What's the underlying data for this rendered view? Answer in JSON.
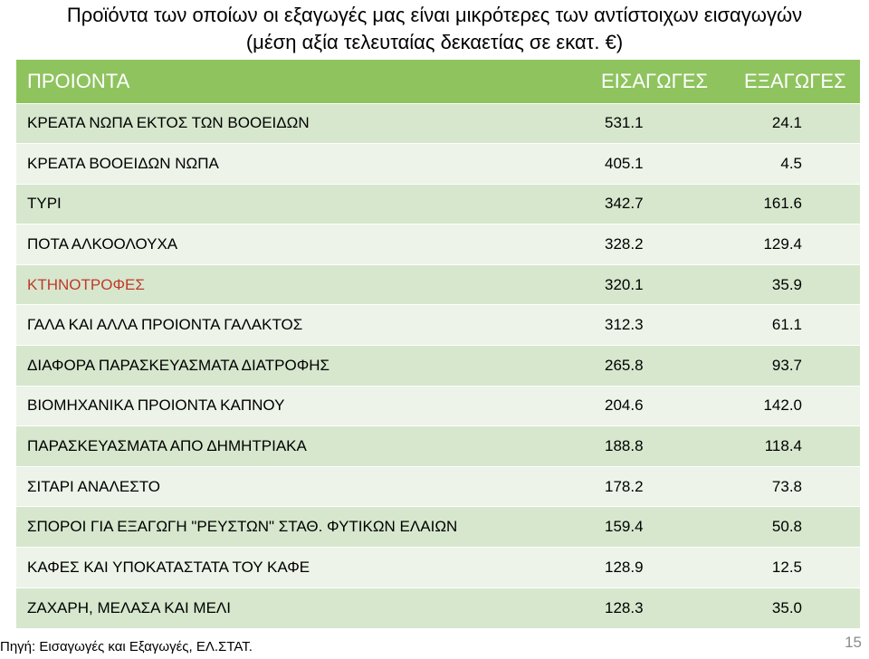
{
  "title": {
    "line1": "Προϊόντα των οποίων οι εξαγωγές μας είναι μικρότερες των αντίστοιχων εισαγωγών",
    "line2": "(μέση αξία τελευταίας δεκαετίας σε εκατ. €)"
  },
  "table": {
    "headers": [
      "ΠΡΟΙΟΝΤΑ",
      "ΕΙΣΑΓΩΓΕΣ",
      "ΕΞΑΓΩΓΕΣ"
    ],
    "rows": [
      {
        "name": "ΚΡΕΑΤΑ ΝΩΠΑ ΕΚΤΟΣ ΤΩΝ ΒΟΟΕΙΔΩΝ",
        "imports": "531.1",
        "exports": "24.1"
      },
      {
        "name": "ΚΡΕΑΤΑ ΒΟΟΕΙΔΩΝ ΝΩΠΑ",
        "imports": "405.1",
        "exports": "4.5"
      },
      {
        "name": "ΤΥΡΙ",
        "imports": "342.7",
        "exports": "161.6"
      },
      {
        "name": "ΠΟΤΑ ΑΛΚΟΟΛΟΥΧΑ",
        "imports": "328.2",
        "exports": "129.4"
      },
      {
        "name": "ΚΤΗΝΟΤΡΟΦΕΣ",
        "imports": "320.1",
        "exports": "35.9"
      },
      {
        "name": "ΓΑΛΑ ΚΑΙ ΑΛΛΑ ΠΡΟΙΟΝΤΑ ΓΑΛΑΚΤΟΣ",
        "imports": "312.3",
        "exports": "61.1"
      },
      {
        "name": "ΔΙΑΦΟΡΑ ΠΑΡΑΣΚΕΥΑΣΜΑΤΑ ΔΙΑΤΡΟΦΗΣ",
        "imports": "265.8",
        "exports": "93.7"
      },
      {
        "name": "ΒΙΟΜΗΧΑΝΙΚΑ ΠΡΟΙΟΝΤΑ ΚΑΠΝΟΥ",
        "imports": "204.6",
        "exports": "142.0"
      },
      {
        "name": "ΠΑΡΑΣΚΕΥΑΣΜΑΤΑ ΑΠΟ ΔΗΜΗΤΡΙΑΚΑ",
        "imports": "188.8",
        "exports": "118.4"
      },
      {
        "name": "ΣΙΤΑΡΙ ΑΝΑΛΕΣΤΟ",
        "imports": "178.2",
        "exports": "73.8"
      },
      {
        "name": "ΣΠΟΡΟΙ ΓΙΑ ΕΞΑΓΩΓΗ \"ΡΕΥΣΤΩΝ\" ΣΤΑΘ. ΦΥΤΙΚΩΝ ΕΛΑΙΩΝ",
        "imports": "159.4",
        "exports": "50.8"
      },
      {
        "name": "ΚΑΦΕΣ ΚΑΙ ΥΠΟΚΑΤΑΣΤΑΤΑ ΤΟΥ ΚΑΦΕ",
        "imports": "128.9",
        "exports": "12.5"
      },
      {
        "name": "ΖΑΧΑΡΗ, ΜΕΛΑΣΑ ΚΑΙ ΜΕΛΙ",
        "imports": "128.3",
        "exports": "35.0"
      }
    ],
    "highlight_row": 4
  },
  "colors": {
    "header_bg": "#8ec35e",
    "row_odd": "#d6e7cd",
    "row_even": "#edf3e8",
    "highlight_text": "#c0392b"
  },
  "source": "Πηγή: Εισαγωγές και Εξαγωγές, ΕΛ.ΣΤΑΤ.",
  "page_number": "15"
}
